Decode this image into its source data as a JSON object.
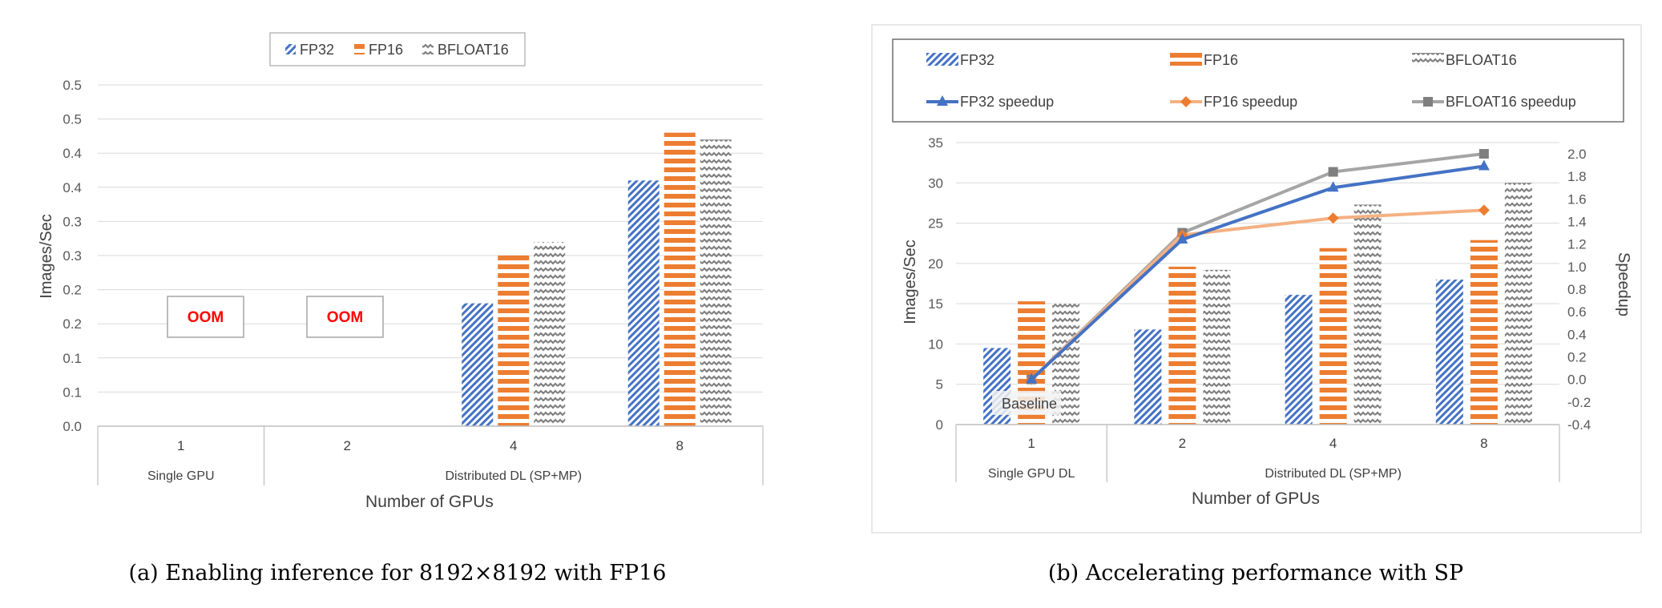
{
  "captions": {
    "a": "(a) Enabling inference for 8192×8192 with FP16",
    "b": "(b) Accelerating performance with SP"
  },
  "colors": {
    "fp32": "#4472C4",
    "fp16": "#ED7D31",
    "bfloat16": "#A5A5A5",
    "fp16_speedup": "#F4B183",
    "grid": "#D9D9D9",
    "oom": "#FF0000"
  },
  "chart_data": [
    {
      "type": "bar",
      "title": "",
      "xlabel": "Number of GPUs",
      "ylabel": "Images/Sec",
      "categories": [
        "1",
        "2",
        "4",
        "8"
      ],
      "group_labels": [
        "Single GPU",
        "Distributed DL (SP+MP)"
      ],
      "ylim": [
        0,
        0.5
      ],
      "yticks": [
        "0.5",
        "0.5",
        "0.4",
        "0.4",
        "0.3",
        "0.3",
        "0.2",
        "0.2",
        "0.1",
        "0.1",
        "0.0"
      ],
      "series": [
        {
          "name": "FP32",
          "values": [
            null,
            null,
            0.18,
            0.36
          ]
        },
        {
          "name": "FP16",
          "values": [
            null,
            null,
            0.25,
            0.43
          ]
        },
        {
          "name": "BFLOAT16",
          "values": [
            null,
            null,
            0.27,
            0.42
          ]
        }
      ],
      "annotations": [
        "OOM",
        "OOM"
      ],
      "legend": "top-center",
      "grid": true
    },
    {
      "type": "bar",
      "title": "",
      "xlabel": "Number of GPUs",
      "ylabel": "Images/Sec",
      "ylabel_right": "Speedup",
      "categories": [
        "1",
        "2",
        "4",
        "8"
      ],
      "group_labels": [
        "Single GPU DL",
        "Distributed DL (SP+MP)"
      ],
      "ylim": [
        0,
        35
      ],
      "ylim_right": [
        -0.4,
        2.0
      ],
      "yticks": [
        "35",
        "30",
        "25",
        "20",
        "15",
        "10",
        "5",
        "0"
      ],
      "yticks_right": [
        "2.0",
        "1.8",
        "1.6",
        "1.4",
        "1.2",
        "1.0",
        "0.8",
        "0.6",
        "0.4",
        "0.2",
        "0.0",
        "-0.2",
        "-0.4"
      ],
      "series": [
        {
          "name": "FP32",
          "values": [
            9.5,
            11.8,
            16.1,
            18.0
          ]
        },
        {
          "name": "FP16",
          "values": [
            15.3,
            19.6,
            21.9,
            22.9
          ]
        },
        {
          "name": "BFLOAT16",
          "values": [
            15.0,
            19.2,
            27.3,
            30.0
          ]
        }
      ],
      "line_series": [
        {
          "name": "FP32 speedup",
          "values": [
            0.0,
            1.24,
            1.7,
            1.89
          ]
        },
        {
          "name": "FP16 speedup",
          "values": [
            0.0,
            1.28,
            1.43,
            1.5
          ]
        },
        {
          "name": "BFLOAT16 speedup",
          "values": [
            0.0,
            1.3,
            1.84,
            2.0
          ]
        }
      ],
      "annotations": [
        "Baseline"
      ],
      "legend": "top",
      "grid": true
    }
  ]
}
